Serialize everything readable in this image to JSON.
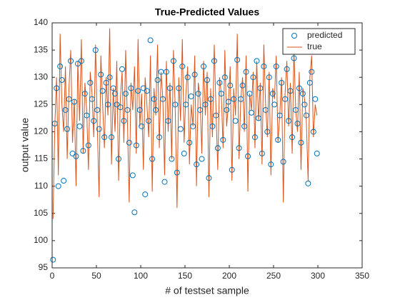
{
  "chart_data": {
    "type": "line_scatter",
    "title": "True-Predicted Values",
    "xlabel": "# of testset sample",
    "ylabel": "output value",
    "xlim": [
      0,
      350
    ],
    "xticks": [
      0,
      50,
      100,
      150,
      200,
      250,
      300,
      350
    ],
    "ylim": [
      95,
      140
    ],
    "yticks": [
      95,
      100,
      105,
      110,
      115,
      120,
      125,
      130,
      135,
      140
    ],
    "legend_position": "upper right",
    "x": [
      1,
      3,
      5,
      7,
      9,
      11,
      13,
      15,
      17,
      19,
      21,
      23,
      25,
      27,
      29,
      31,
      33,
      35,
      37,
      39,
      41,
      43,
      45,
      47,
      49,
      51,
      53,
      55,
      57,
      59,
      61,
      63,
      65,
      67,
      69,
      71,
      73,
      75,
      77,
      79,
      81,
      83,
      85,
      87,
      89,
      91,
      93,
      95,
      97,
      99,
      101,
      103,
      105,
      107,
      109,
      111,
      113,
      115,
      117,
      119,
      121,
      123,
      125,
      127,
      129,
      131,
      133,
      135,
      137,
      139,
      141,
      143,
      145,
      147,
      149,
      151,
      153,
      155,
      157,
      159,
      161,
      163,
      165,
      167,
      169,
      171,
      173,
      175,
      177,
      179,
      181,
      183,
      185,
      187,
      189,
      191,
      193,
      195,
      197,
      199,
      201,
      203,
      205,
      207,
      209,
      211,
      213,
      215,
      217,
      219,
      221,
      223,
      225,
      227,
      229,
      231,
      233,
      235,
      237,
      239,
      241,
      243,
      245,
      247,
      249,
      251,
      253,
      255,
      257,
      259,
      261,
      263,
      265,
      267,
      269,
      271,
      273,
      275,
      277,
      279,
      281,
      283,
      285,
      287,
      289,
      291,
      293,
      295,
      297,
      299
    ],
    "series": [
      {
        "name": "predicted",
        "kind": "marker",
        "color": "#0072bd",
        "values": [
          96.5,
          121.5,
          128,
          110,
          132,
          129.5,
          111,
          124,
          120.5,
          126,
          133,
          116,
          125.5,
          115.5,
          132.5,
          121,
          133,
          116.5,
          127,
          123,
          117.5,
          129,
          126,
          122,
          135,
          124,
          120.5,
          130.5,
          127.5,
          119,
          129,
          125,
          130,
          119,
          128,
          127,
          125,
          115,
          124.5,
          131.5,
          122,
          127,
          124,
          118,
          128,
          112,
          105.2,
          117.5,
          127.5,
          124,
          121,
          128,
          108.5,
          127.5,
          122,
          136.8,
          115,
          126,
          124,
          129.5,
          119,
          131,
          126,
          110.8,
          131,
          122,
          128,
          115,
          133,
          125,
          112.5,
          128,
          120.5,
          132,
          116,
          125,
          130,
          118,
          126.5,
          121,
          130.5,
          114,
          127,
          124,
          115,
          132,
          125,
          129.5,
          111.5,
          126,
          121,
          133,
          123,
          117,
          129,
          127,
          118.5,
          130,
          124,
          125.5,
          128.5,
          113,
          126,
          122,
          133.2,
          117,
          126,
          128.5,
          121,
          131,
          115.5,
          127,
          123.5,
          130,
          119,
          133,
          122.5,
          128,
          116,
          132,
          124,
          120,
          130,
          114,
          127,
          125,
          132,
          118.5,
          123,
          129,
          114.5,
          126,
          131.5,
          122,
          127.5,
          119,
          133.5,
          124,
          121.5,
          128,
          118,
          127,
          125,
          123,
          110.5,
          129,
          131,
          120,
          126,
          116
        ]
      },
      {
        "name": "true",
        "kind": "line",
        "color": "#d95319",
        "values": [
          104,
          121,
          130,
          112,
          138,
          125,
          120,
          132,
          115,
          128,
          135,
          118,
          126,
          110,
          133,
          122,
          137,
          116,
          129,
          124,
          113,
          131,
          127,
          119,
          136,
          121,
          108,
          134,
          125,
          117,
          130,
          123,
          139,
          114,
          128,
          120,
          133,
          111,
          126,
          131,
          118,
          135,
          122,
          107,
          129,
          124,
          132,
          116,
          137,
          121,
          127,
          113,
          130,
          125,
          119,
          134,
          109,
          128,
          123,
          136,
          117,
          131,
          126,
          112,
          133,
          120,
          129,
          115,
          135,
          124,
          106,
          130,
          122,
          137,
          118,
          127,
          132,
          114,
          125,
          121,
          134,
          110,
          129,
          126,
          116,
          133,
          123,
          131,
          108,
          128,
          119,
          136,
          124,
          113,
          130,
          127,
          117,
          135,
          121,
          125,
          132,
          111,
          128,
          123,
          138,
          115,
          126,
          130,
          120,
          134,
          109,
          127,
          124,
          131,
          117,
          133,
          122,
          129,
          114,
          136,
          125,
          119,
          131,
          112,
          128,
          126,
          134,
          118,
          123,
          130,
          107,
          127,
          133,
          121,
          129,
          116,
          135,
          124,
          120,
          131,
          113,
          128,
          126,
          122,
          111,
          130,
          134,
          119,
          125,
          123
        ]
      }
    ]
  }
}
